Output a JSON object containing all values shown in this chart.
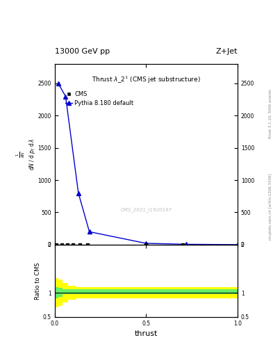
{
  "title_main": "13000 GeV pp",
  "title_right": "Z+Jet",
  "plot_title": "Thrust $\\lambda\\_2^1$ (CMS jet substructure)",
  "xlabel": "thrust",
  "ylabel_ratio": "Ratio to CMS",
  "right_label": "Rivet 3.1.10, 500k events",
  "right_label2": "mcplots.cern.ch [arXiv:1306.3436]",
  "watermark": "CMS_2021_I1920187",
  "cms_x": [
    0.01,
    0.04,
    0.07,
    0.1,
    0.14,
    0.18,
    0.5,
    0.7
  ],
  "cms_y": [
    2.0,
    2.0,
    2.0,
    2.0,
    2.0,
    2.0,
    2.0,
    2.0
  ],
  "pythia_x": [
    0.02,
    0.06,
    0.13,
    0.19,
    0.5,
    0.72,
    1.0
  ],
  "pythia_y": [
    2500,
    2300,
    800,
    200,
    20,
    5,
    0
  ],
  "ylim_main": [
    0,
    2800
  ],
  "yticks_main": [
    0,
    500,
    1000,
    1500,
    2000,
    2500
  ],
  "xlim": [
    0.0,
    1.0
  ],
  "xticks": [
    0.0,
    0.5,
    1.0
  ],
  "ratio_ylim": [
    0.5,
    2.0
  ],
  "ratio_yticks": [
    0.5,
    1.0,
    2.0
  ],
  "ratio_yticklabels": [
    "0.5",
    "1",
    "2"
  ],
  "line_color": "#0000cc",
  "marker_color": "#000000",
  "background_color": "#ffffff",
  "yellow_segments": [
    {
      "x": [
        0.0,
        0.02
      ],
      "ylo": 0.7,
      "yhi": 1.3
    },
    {
      "x": [
        0.02,
        0.045
      ],
      "ylo": 0.72,
      "yhi": 1.28
    },
    {
      "x": [
        0.045,
        0.075
      ],
      "ylo": 0.8,
      "yhi": 1.2
    },
    {
      "x": [
        0.075,
        0.12
      ],
      "ylo": 0.85,
      "yhi": 1.15
    },
    {
      "x": [
        0.12,
        1.0
      ],
      "ylo": 0.88,
      "yhi": 1.12
    }
  ],
  "green_segments": [
    {
      "x": [
        0.0,
        0.02
      ],
      "ylo": 0.88,
      "yhi": 1.12
    },
    {
      "x": [
        0.02,
        0.045
      ],
      "ylo": 0.92,
      "yhi": 1.1
    },
    {
      "x": [
        0.045,
        1.0
      ],
      "ylo": 0.97,
      "yhi": 1.07
    }
  ]
}
